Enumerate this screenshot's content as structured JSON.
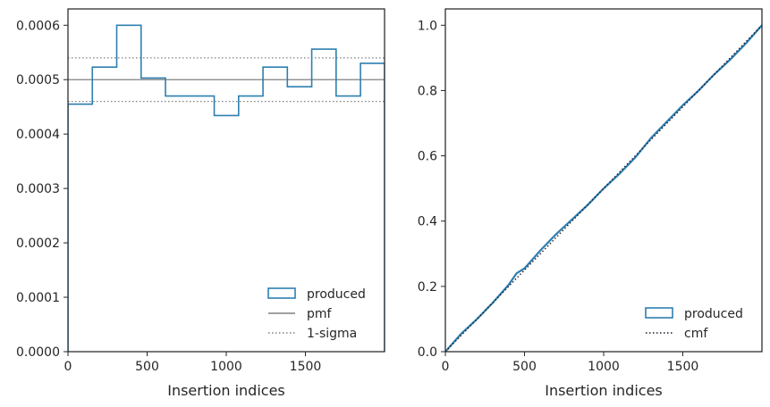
{
  "colors": {
    "produced": "#2e7fb0",
    "pmf": "#808080",
    "sigma": "#808080",
    "cmf": "#1a1a2e",
    "axes": "#262626"
  },
  "chart_data": [
    {
      "type": "histogram",
      "xlabel": "Insertion indices",
      "ylabel": "",
      "xlim": [
        0,
        2000
      ],
      "ylim": [
        0,
        0.00063
      ],
      "xticks": [
        0,
        500,
        1000,
        1500
      ],
      "yticks": [
        0,
        0.0001,
        0.0002,
        0.0003,
        0.0004,
        0.0005,
        0.0006
      ],
      "xtick_labels": [
        "0",
        "500",
        "1000",
        "1500"
      ],
      "ytick_labels": [
        "0.0000",
        "0.0001",
        "0.0002",
        "0.0003",
        "0.0004",
        "0.0005",
        "0.0006"
      ],
      "bin_edges": [
        0,
        154,
        308,
        462,
        616,
        770,
        924,
        1078,
        1232,
        1386,
        1540,
        1694,
        1848,
        2000
      ],
      "values": [
        0.000455,
        0.000523,
        0.0006,
        0.000503,
        0.00047,
        0.00047,
        0.000434,
        0.00047,
        0.000523,
        0.000487,
        0.000556,
        0.00047,
        0.00053
      ],
      "pmf": 0.0005,
      "sigma_band": [
        0.00046,
        0.00054
      ],
      "legend": {
        "position": "lower right",
        "entries": [
          {
            "key": "produced",
            "label": "produced",
            "style": "patch"
          },
          {
            "key": "pmf",
            "label": "pmf",
            "style": "solid"
          },
          {
            "key": "sigma",
            "label": "1-sigma",
            "style": "dotted"
          }
        ]
      }
    },
    {
      "type": "line",
      "xlabel": "Insertion indices",
      "ylabel": "",
      "xlim": [
        0,
        2000
      ],
      "ylim": [
        0,
        1.05
      ],
      "xticks": [
        0,
        500,
        1000,
        1500
      ],
      "yticks": [
        0,
        0.2,
        0.4,
        0.6,
        0.8,
        1.0
      ],
      "xtick_labels": [
        "0",
        "500",
        "1000",
        "1500"
      ],
      "ytick_labels": [
        "0.0",
        "0.2",
        "0.4",
        "0.6",
        "0.8",
        "1.0"
      ],
      "series": [
        {
          "name": "produced",
          "x": [
            0,
            100,
            200,
            300,
            400,
            450,
            500,
            600,
            700,
            800,
            900,
            1000,
            1100,
            1200,
            1300,
            1400,
            1500,
            1600,
            1700,
            1800,
            1900,
            2000
          ],
          "y": [
            0,
            0.055,
            0.1,
            0.15,
            0.205,
            0.24,
            0.255,
            0.31,
            0.36,
            0.405,
            0.45,
            0.5,
            0.545,
            0.595,
            0.655,
            0.705,
            0.755,
            0.8,
            0.85,
            0.895,
            0.945,
            1.0
          ]
        },
        {
          "name": "cmf",
          "x": [
            0,
            2000
          ],
          "y": [
            0,
            1.0
          ]
        }
      ],
      "legend": {
        "position": "lower right",
        "entries": [
          {
            "key": "produced",
            "label": "produced",
            "style": "patch"
          },
          {
            "key": "cmf",
            "label": "cmf",
            "style": "dotted"
          }
        ]
      }
    }
  ]
}
